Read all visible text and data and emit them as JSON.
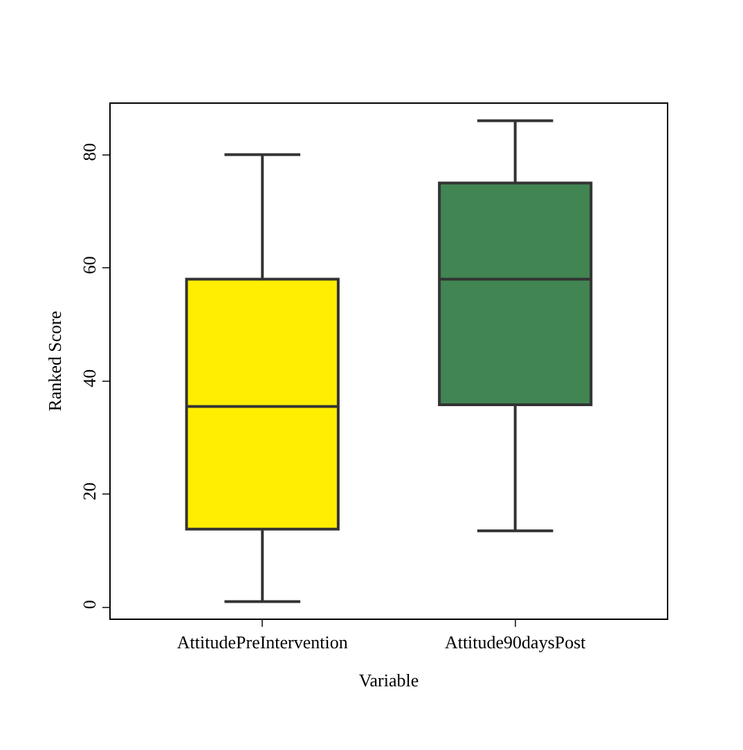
{
  "chart_data": {
    "type": "box",
    "xlabel": "Variable",
    "ylabel": "Ranked Score",
    "categories": [
      "AttitudePreIntervention",
      "Attitude90daysPost"
    ],
    "boxes": [
      {
        "low": 1,
        "q1": 13.8,
        "median": 35.5,
        "q3": 58,
        "high": 80
      },
      {
        "low": 13.5,
        "q1": 35.8,
        "median": 58,
        "q3": 75,
        "high": 86
      }
    ],
    "colors": [
      "#ffee00",
      "#418553"
    ],
    "ylim": [
      -2,
      89
    ],
    "yticks": [
      0,
      20,
      40,
      60,
      80
    ],
    "grid": false
  }
}
